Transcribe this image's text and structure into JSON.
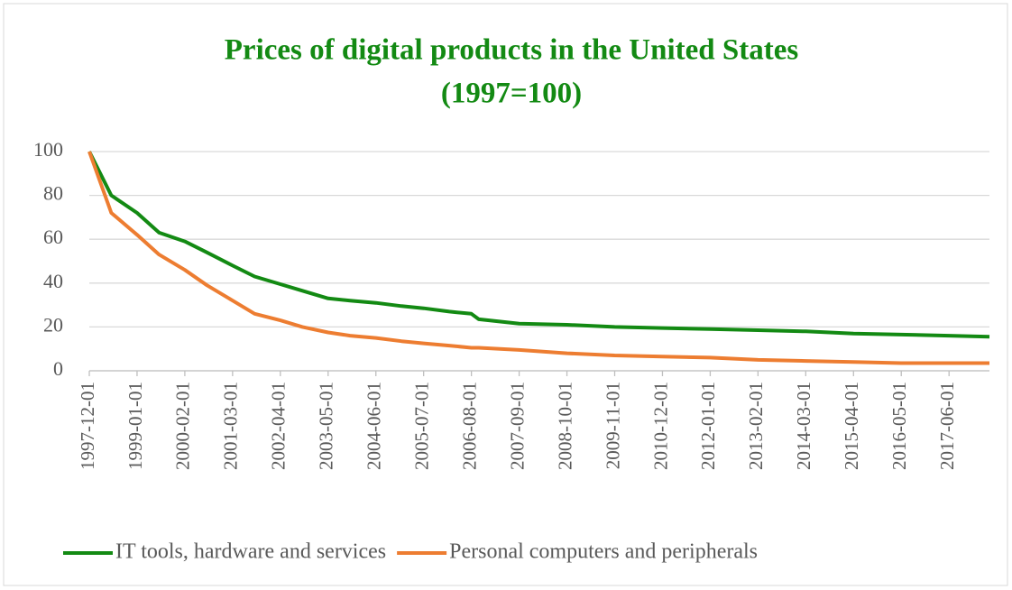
{
  "chart_data": {
    "type": "line",
    "title": "Prices of digital products in the United States",
    "subtitle": "(1997=100)",
    "x": [
      "1997-12-01",
      "1998-06-01",
      "1999-01-01",
      "1999-07-01",
      "2000-02-01",
      "2000-08-01",
      "2001-03-01",
      "2001-09-01",
      "2002-04-01",
      "2002-10-01",
      "2003-05-01",
      "2003-11-01",
      "2004-06-01",
      "2005-01-01",
      "2005-07-01",
      "2006-02-01",
      "2006-08-01",
      "2006-10-01",
      "2007-09-01",
      "2008-10-01",
      "2009-11-01",
      "2010-12-01",
      "2012-01-01",
      "2013-02-01",
      "2014-03-01",
      "2015-04-01",
      "2016-05-01",
      "2017-06-01",
      "2018-05-01"
    ],
    "series": [
      {
        "name": "IT tools, hardware and services",
        "color": "#138a13",
        "values": [
          100,
          80,
          72,
          63,
          59,
          54,
          48,
          43,
          39.5,
          36.5,
          33,
          32,
          31,
          29.5,
          28.5,
          27,
          26,
          23.5,
          21.5,
          21,
          20,
          19.5,
          19,
          18.5,
          18,
          17,
          16.5,
          16,
          15.5
        ]
      },
      {
        "name": "Personal computers and peripherals",
        "color": "#ed7d31",
        "values": [
          100,
          72,
          62,
          53,
          46,
          39,
          32,
          26,
          23,
          20,
          17.5,
          16,
          15,
          13.5,
          12.5,
          11.5,
          10.5,
          10.5,
          9.5,
          8,
          7,
          6.5,
          6,
          5,
          4.5,
          4,
          3.5,
          3.5,
          3.5
        ]
      }
    ],
    "xlim": [
      "1997-12-01",
      "2018-05-01"
    ],
    "xticks": [
      "1997-12-01",
      "1999-01-01",
      "2000-02-01",
      "2001-03-01",
      "2002-04-01",
      "2003-05-01",
      "2004-06-01",
      "2005-07-01",
      "2006-08-01",
      "2007-09-01",
      "2008-10-01",
      "2009-11-01",
      "2010-12-01",
      "2012-01-01",
      "2013-02-01",
      "2014-03-01",
      "2015-04-01",
      "2016-05-01",
      "2017-06-01"
    ],
    "ylim": [
      0,
      100
    ],
    "yticks": [
      0,
      20,
      40,
      60,
      80,
      100
    ],
    "grid": true,
    "legend": "bottom"
  }
}
